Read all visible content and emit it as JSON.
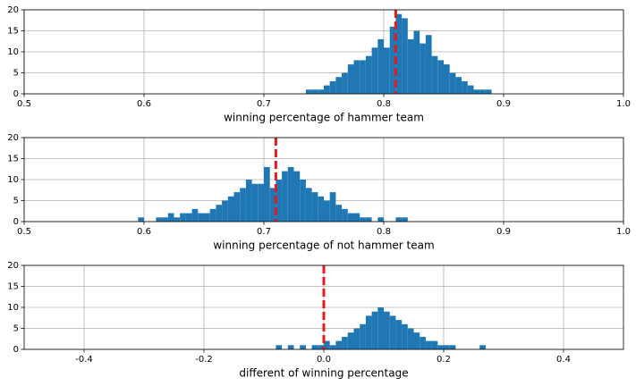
{
  "chart_data": [
    {
      "type": "histogram",
      "x_label": "winning percentage of hammer team",
      "color": "#1f77b4",
      "bins": [
        0.735,
        0.74,
        0.745,
        0.75,
        0.755,
        0.76,
        0.765,
        0.77,
        0.775,
        0.78,
        0.785,
        0.79,
        0.795,
        0.8,
        0.805,
        0.81,
        0.815,
        0.82,
        0.825,
        0.83,
        0.835,
        0.84,
        0.845,
        0.85,
        0.855,
        0.86,
        0.865,
        0.87,
        0.875,
        0.88,
        0.885,
        0.89
      ],
      "values": [
        1,
        1,
        1,
        2,
        3,
        4,
        5,
        7,
        8,
        8,
        9,
        11,
        13,
        11,
        16,
        19,
        18,
        13,
        15,
        12,
        14,
        9,
        8,
        7,
        5,
        4,
        3,
        2,
        1,
        1,
        1
      ],
      "xlim": [
        0.5,
        1.0
      ],
      "xticks": [
        0.5,
        0.6,
        0.7,
        0.8,
        0.9,
        {
          "value": 1,
          "label": "1.0"
        }
      ],
      "ylim": [
        0,
        20
      ],
      "yticks": [
        0,
        5,
        10,
        15,
        20
      ],
      "grid": true,
      "vline": 0.81,
      "vline_color": "#e41a1c"
    },
    {
      "type": "histogram",
      "x_label": "winning percentage of not hammer team",
      "color": "#1f77b4",
      "bins": [
        0.595,
        0.6,
        0.605,
        0.61,
        0.615,
        0.62,
        0.625,
        0.63,
        0.635,
        0.64,
        0.645,
        0.65,
        0.655,
        0.66,
        0.665,
        0.67,
        0.675,
        0.68,
        0.685,
        0.69,
        0.695,
        0.7,
        0.705,
        0.71,
        0.715,
        0.72,
        0.725,
        0.73,
        0.735,
        0.74,
        0.745,
        0.75,
        0.755,
        0.76,
        0.765,
        0.77,
        0.775,
        0.78,
        0.785,
        0.79,
        0.795,
        0.8,
        0.805,
        0.81,
        0.815,
        0.82
      ],
      "values": [
        1,
        0,
        0,
        1,
        1,
        2,
        1,
        2,
        2,
        3,
        2,
        2,
        3,
        4,
        5,
        6,
        7,
        8,
        10,
        9,
        9,
        13,
        8,
        10,
        12,
        13,
        12,
        10,
        8,
        7,
        6,
        5,
        7,
        4,
        3,
        2,
        2,
        1,
        1,
        0,
        1,
        0,
        0,
        1,
        1
      ],
      "xlim": [
        0.5,
        1.0
      ],
      "xticks": [
        0.5,
        0.6,
        0.7,
        0.8,
        0.9,
        {
          "value": 1,
          "label": "1.0"
        }
      ],
      "ylim": [
        0,
        20
      ],
      "yticks": [
        0,
        5,
        10,
        15,
        20
      ],
      "grid": true,
      "vline": 0.71,
      "vline_color": "#e41a1c"
    },
    {
      "type": "histogram",
      "x_label": "different of winning percentage",
      "color": "#1f77b4",
      "bins": [
        -0.1,
        -0.09,
        -0.08,
        -0.07,
        -0.06,
        -0.05,
        -0.04,
        -0.03,
        -0.02,
        -0.01,
        0,
        0.01,
        0.02,
        0.03,
        0.04,
        0.05,
        0.06,
        0.07,
        0.08,
        0.09,
        0.1,
        0.11,
        0.12,
        0.13,
        0.14,
        0.15,
        0.16,
        0.17,
        0.18,
        0.19,
        0.2,
        0.21,
        0.22,
        0.23,
        0.24,
        0.25,
        0.26,
        0.27,
        0.28
      ],
      "values": [
        0,
        0,
        1,
        0,
        1,
        0,
        1,
        0,
        1,
        1,
        2,
        1,
        2,
        3,
        4,
        5,
        6,
        8,
        9,
        10,
        9,
        8,
        7,
        6,
        5,
        4,
        3,
        2,
        2,
        1,
        1,
        1,
        0,
        0,
        0,
        0,
        1,
        0
      ],
      "xlim": [
        -0.5,
        0.5
      ],
      "xticks": [
        -0.4,
        -0.2,
        {
          "value": 0,
          "label": "0.0"
        },
        0.2,
        0.4
      ],
      "ylim": [
        0,
        20
      ],
      "yticks": [
        0,
        5,
        10,
        15,
        20
      ],
      "grid": true,
      "vline": 0,
      "vline_color": "#e41a1c"
    }
  ]
}
